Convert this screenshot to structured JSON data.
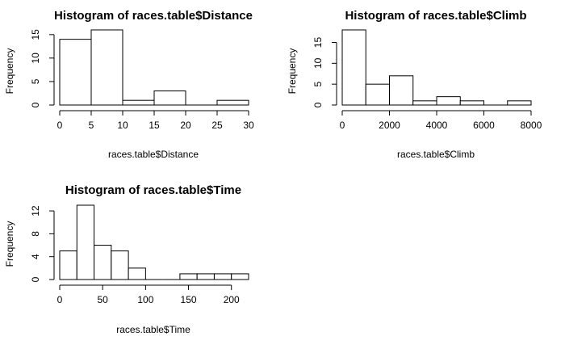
{
  "chart_data": [
    {
      "type": "bar",
      "title": "Histogram of races.table$Distance",
      "xlabel": "races.table$Distance",
      "ylabel": "Frequency",
      "bins": [
        {
          "from": 0,
          "to": 5,
          "count": 14
        },
        {
          "from": 5,
          "to": 10,
          "count": 16
        },
        {
          "from": 10,
          "to": 15,
          "count": 1
        },
        {
          "from": 15,
          "to": 20,
          "count": 3
        },
        {
          "from": 20,
          "to": 25,
          "count": 0
        },
        {
          "from": 25,
          "to": 30,
          "count": 1
        }
      ],
      "xlim": [
        0,
        30
      ],
      "ylim": [
        0,
        16
      ],
      "xticks": [
        0,
        5,
        10,
        15,
        20,
        25,
        30
      ],
      "yticks": [
        0,
        5,
        10,
        15
      ]
    },
    {
      "type": "bar",
      "title": "Histogram of races.table$Climb",
      "xlabel": "races.table$Climb",
      "ylabel": "Frequency",
      "bins": [
        {
          "from": 0,
          "to": 1000,
          "count": 18
        },
        {
          "from": 1000,
          "to": 2000,
          "count": 5
        },
        {
          "from": 2000,
          "to": 3000,
          "count": 7
        },
        {
          "from": 3000,
          "to": 4000,
          "count": 1
        },
        {
          "from": 4000,
          "to": 5000,
          "count": 2
        },
        {
          "from": 5000,
          "to": 6000,
          "count": 1
        },
        {
          "from": 6000,
          "to": 7000,
          "count": 0
        },
        {
          "from": 7000,
          "to": 8000,
          "count": 1
        }
      ],
      "xlim": [
        0,
        8000
      ],
      "ylim": [
        0,
        18
      ],
      "xticks": [
        0,
        2000,
        4000,
        6000,
        8000
      ],
      "yticks": [
        0,
        5,
        10,
        15
      ]
    },
    {
      "type": "bar",
      "title": "Histogram of races.table$Time",
      "xlabel": "races.table$Time",
      "ylabel": "Frequency",
      "bins": [
        {
          "from": 0,
          "to": 20,
          "count": 5
        },
        {
          "from": 20,
          "to": 40,
          "count": 13
        },
        {
          "from": 40,
          "to": 60,
          "count": 6
        },
        {
          "from": 60,
          "to": 80,
          "count": 5
        },
        {
          "from": 80,
          "to": 100,
          "count": 2
        },
        {
          "from": 100,
          "to": 120,
          "count": 0
        },
        {
          "from": 120,
          "to": 140,
          "count": 0
        },
        {
          "from": 140,
          "to": 160,
          "count": 1
        },
        {
          "from": 160,
          "to": 180,
          "count": 1
        },
        {
          "from": 180,
          "to": 200,
          "count": 1
        },
        {
          "from": 200,
          "to": 220,
          "count": 1
        }
      ],
      "xlim": [
        0,
        220
      ],
      "ylim": [
        0,
        13
      ],
      "xticks": [
        0,
        50,
        100,
        150,
        200
      ],
      "yticks": [
        0,
        4,
        8,
        12
      ]
    }
  ]
}
